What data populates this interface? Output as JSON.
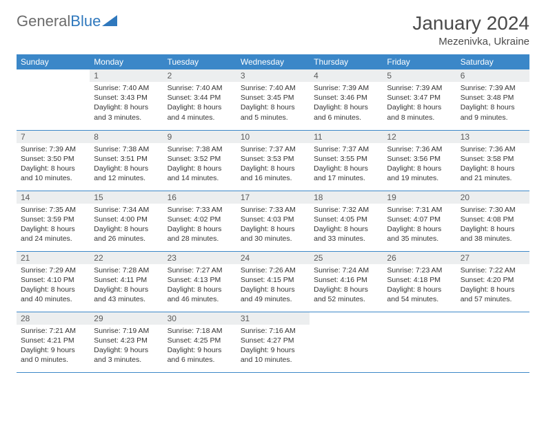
{
  "logo": {
    "text1": "General",
    "text2": "Blue"
  },
  "title": "January 2024",
  "location": "Mezenivka, Ukraine",
  "colors": {
    "header_bg": "#3b87c8",
    "header_text": "#ffffff",
    "daynum_bg": "#eceeef",
    "border": "#3b87c8",
    "logo_gray": "#6b6b6b",
    "logo_blue": "#2f78bd"
  },
  "weekdays": [
    "Sunday",
    "Monday",
    "Tuesday",
    "Wednesday",
    "Thursday",
    "Friday",
    "Saturday"
  ],
  "weeks": [
    [
      {
        "n": "",
        "sr": "",
        "ss": "",
        "dl": ""
      },
      {
        "n": "1",
        "sr": "Sunrise: 7:40 AM",
        "ss": "Sunset: 3:43 PM",
        "dl": "Daylight: 8 hours and 3 minutes."
      },
      {
        "n": "2",
        "sr": "Sunrise: 7:40 AM",
        "ss": "Sunset: 3:44 PM",
        "dl": "Daylight: 8 hours and 4 minutes."
      },
      {
        "n": "3",
        "sr": "Sunrise: 7:40 AM",
        "ss": "Sunset: 3:45 PM",
        "dl": "Daylight: 8 hours and 5 minutes."
      },
      {
        "n": "4",
        "sr": "Sunrise: 7:39 AM",
        "ss": "Sunset: 3:46 PM",
        "dl": "Daylight: 8 hours and 6 minutes."
      },
      {
        "n": "5",
        "sr": "Sunrise: 7:39 AM",
        "ss": "Sunset: 3:47 PM",
        "dl": "Daylight: 8 hours and 8 minutes."
      },
      {
        "n": "6",
        "sr": "Sunrise: 7:39 AM",
        "ss": "Sunset: 3:48 PM",
        "dl": "Daylight: 8 hours and 9 minutes."
      }
    ],
    [
      {
        "n": "7",
        "sr": "Sunrise: 7:39 AM",
        "ss": "Sunset: 3:50 PM",
        "dl": "Daylight: 8 hours and 10 minutes."
      },
      {
        "n": "8",
        "sr": "Sunrise: 7:38 AM",
        "ss": "Sunset: 3:51 PM",
        "dl": "Daylight: 8 hours and 12 minutes."
      },
      {
        "n": "9",
        "sr": "Sunrise: 7:38 AM",
        "ss": "Sunset: 3:52 PM",
        "dl": "Daylight: 8 hours and 14 minutes."
      },
      {
        "n": "10",
        "sr": "Sunrise: 7:37 AM",
        "ss": "Sunset: 3:53 PM",
        "dl": "Daylight: 8 hours and 16 minutes."
      },
      {
        "n": "11",
        "sr": "Sunrise: 7:37 AM",
        "ss": "Sunset: 3:55 PM",
        "dl": "Daylight: 8 hours and 17 minutes."
      },
      {
        "n": "12",
        "sr": "Sunrise: 7:36 AM",
        "ss": "Sunset: 3:56 PM",
        "dl": "Daylight: 8 hours and 19 minutes."
      },
      {
        "n": "13",
        "sr": "Sunrise: 7:36 AM",
        "ss": "Sunset: 3:58 PM",
        "dl": "Daylight: 8 hours and 21 minutes."
      }
    ],
    [
      {
        "n": "14",
        "sr": "Sunrise: 7:35 AM",
        "ss": "Sunset: 3:59 PM",
        "dl": "Daylight: 8 hours and 24 minutes."
      },
      {
        "n": "15",
        "sr": "Sunrise: 7:34 AM",
        "ss": "Sunset: 4:00 PM",
        "dl": "Daylight: 8 hours and 26 minutes."
      },
      {
        "n": "16",
        "sr": "Sunrise: 7:33 AM",
        "ss": "Sunset: 4:02 PM",
        "dl": "Daylight: 8 hours and 28 minutes."
      },
      {
        "n": "17",
        "sr": "Sunrise: 7:33 AM",
        "ss": "Sunset: 4:03 PM",
        "dl": "Daylight: 8 hours and 30 minutes."
      },
      {
        "n": "18",
        "sr": "Sunrise: 7:32 AM",
        "ss": "Sunset: 4:05 PM",
        "dl": "Daylight: 8 hours and 33 minutes."
      },
      {
        "n": "19",
        "sr": "Sunrise: 7:31 AM",
        "ss": "Sunset: 4:07 PM",
        "dl": "Daylight: 8 hours and 35 minutes."
      },
      {
        "n": "20",
        "sr": "Sunrise: 7:30 AM",
        "ss": "Sunset: 4:08 PM",
        "dl": "Daylight: 8 hours and 38 minutes."
      }
    ],
    [
      {
        "n": "21",
        "sr": "Sunrise: 7:29 AM",
        "ss": "Sunset: 4:10 PM",
        "dl": "Daylight: 8 hours and 40 minutes."
      },
      {
        "n": "22",
        "sr": "Sunrise: 7:28 AM",
        "ss": "Sunset: 4:11 PM",
        "dl": "Daylight: 8 hours and 43 minutes."
      },
      {
        "n": "23",
        "sr": "Sunrise: 7:27 AM",
        "ss": "Sunset: 4:13 PM",
        "dl": "Daylight: 8 hours and 46 minutes."
      },
      {
        "n": "24",
        "sr": "Sunrise: 7:26 AM",
        "ss": "Sunset: 4:15 PM",
        "dl": "Daylight: 8 hours and 49 minutes."
      },
      {
        "n": "25",
        "sr": "Sunrise: 7:24 AM",
        "ss": "Sunset: 4:16 PM",
        "dl": "Daylight: 8 hours and 52 minutes."
      },
      {
        "n": "26",
        "sr": "Sunrise: 7:23 AM",
        "ss": "Sunset: 4:18 PM",
        "dl": "Daylight: 8 hours and 54 minutes."
      },
      {
        "n": "27",
        "sr": "Sunrise: 7:22 AM",
        "ss": "Sunset: 4:20 PM",
        "dl": "Daylight: 8 hours and 57 minutes."
      }
    ],
    [
      {
        "n": "28",
        "sr": "Sunrise: 7:21 AM",
        "ss": "Sunset: 4:21 PM",
        "dl": "Daylight: 9 hours and 0 minutes."
      },
      {
        "n": "29",
        "sr": "Sunrise: 7:19 AM",
        "ss": "Sunset: 4:23 PM",
        "dl": "Daylight: 9 hours and 3 minutes."
      },
      {
        "n": "30",
        "sr": "Sunrise: 7:18 AM",
        "ss": "Sunset: 4:25 PM",
        "dl": "Daylight: 9 hours and 6 minutes."
      },
      {
        "n": "31",
        "sr": "Sunrise: 7:16 AM",
        "ss": "Sunset: 4:27 PM",
        "dl": "Daylight: 9 hours and 10 minutes."
      },
      {
        "n": "",
        "sr": "",
        "ss": "",
        "dl": ""
      },
      {
        "n": "",
        "sr": "",
        "ss": "",
        "dl": ""
      },
      {
        "n": "",
        "sr": "",
        "ss": "",
        "dl": ""
      }
    ]
  ]
}
